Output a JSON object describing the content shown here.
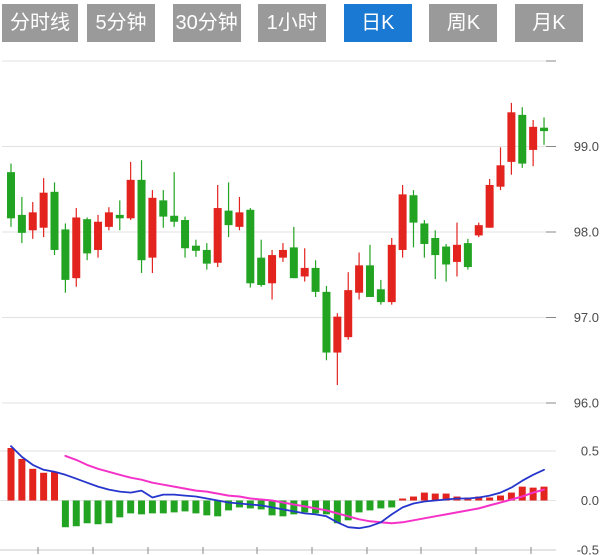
{
  "tabbar": {
    "tabs": [
      {
        "label": "分时线"
      },
      {
        "label": "5分钟"
      },
      {
        "label": "30分钟"
      },
      {
        "label": "1小时"
      },
      {
        "label": "日K"
      },
      {
        "label": "周K"
      },
      {
        "label": "月K"
      }
    ],
    "active_index": 4,
    "active_color": "#1a79d2",
    "inactive_color": "#9a9a9a"
  },
  "chart_data": {
    "type": "candlestick",
    "title": "",
    "panes": [
      "price",
      "macd"
    ],
    "price_axis": {
      "side": "right",
      "lines": [
        {
          "value": 100.0,
          "text": ""
        },
        {
          "value": 99.0,
          "text": "99.0"
        },
        {
          "value": 98.0,
          "text": "98.0"
        },
        {
          "value": 97.0,
          "text": "97.0"
        },
        {
          "value": 96.0,
          "text": "96.0"
        }
      ],
      "ylim": [
        95.8,
        100.1
      ]
    },
    "macd_axis": {
      "side": "right",
      "lines": [
        {
          "value": 0.5,
          "text": "0.5"
        },
        {
          "value": 0.0,
          "text": "0.0"
        },
        {
          "value": -0.5,
          "text": "-0.5"
        }
      ],
      "ylim": [
        -0.5,
        0.5
      ]
    },
    "candles_ohlc": [
      [
        98.7,
        98.8,
        98.06,
        98.16
      ],
      [
        98.2,
        98.41,
        97.87,
        97.99
      ],
      [
        98.02,
        98.35,
        97.92,
        98.23
      ],
      [
        98.05,
        98.63,
        97.94,
        98.46
      ],
      [
        98.47,
        98.58,
        97.73,
        97.79
      ],
      [
        98.03,
        98.1,
        97.29,
        97.44
      ],
      [
        97.46,
        98.28,
        97.36,
        98.17
      ],
      [
        98.15,
        98.17,
        97.67,
        97.75
      ],
      [
        97.79,
        98.2,
        97.7,
        98.12
      ],
      [
        98.06,
        98.29,
        98.02,
        98.23
      ],
      [
        98.2,
        98.37,
        98.02,
        98.16
      ],
      [
        98.16,
        98.82,
        98.14,
        98.61
      ],
      [
        98.61,
        98.84,
        97.52,
        97.67
      ],
      [
        97.7,
        98.49,
        97.52,
        98.4
      ],
      [
        98.37,
        98.49,
        98.05,
        98.18
      ],
      [
        98.19,
        98.7,
        98.06,
        98.12
      ],
      [
        98.14,
        98.18,
        97.7,
        97.81
      ],
      [
        97.84,
        97.91,
        97.71,
        97.78
      ],
      [
        97.79,
        97.87,
        97.56,
        97.63
      ],
      [
        97.64,
        98.55,
        97.59,
        98.28
      ],
      [
        98.25,
        98.58,
        97.94,
        98.08
      ],
      [
        98.06,
        98.41,
        98.02,
        98.23
      ],
      [
        98.26,
        98.28,
        97.35,
        97.4
      ],
      [
        97.7,
        97.91,
        97.36,
        97.38
      ],
      [
        97.4,
        97.79,
        97.21,
        97.73
      ],
      [
        97.7,
        97.87,
        97.65,
        97.79
      ],
      [
        97.82,
        98.06,
        97.46,
        97.46
      ],
      [
        97.48,
        97.81,
        97.42,
        97.58
      ],
      [
        97.58,
        97.67,
        97.24,
        97.3
      ],
      [
        97.3,
        97.37,
        96.5,
        96.59
      ],
      [
        96.59,
        97.05,
        96.21,
        97.01
      ],
      [
        96.77,
        97.53,
        96.74,
        97.32
      ],
      [
        97.29,
        97.76,
        97.21,
        97.61
      ],
      [
        97.61,
        97.85,
        97.24,
        97.24
      ],
      [
        97.33,
        97.44,
        97.15,
        97.18
      ],
      [
        97.18,
        97.93,
        97.15,
        97.85
      ],
      [
        97.79,
        98.55,
        97.7,
        98.44
      ],
      [
        98.43,
        98.49,
        97.82,
        98.11
      ],
      [
        98.1,
        98.14,
        97.7,
        97.86
      ],
      [
        97.93,
        98.02,
        97.45,
        97.73
      ],
      [
        97.83,
        97.86,
        97.42,
        97.62
      ],
      [
        97.65,
        98.11,
        97.48,
        97.85
      ],
      [
        97.87,
        97.92,
        97.56,
        97.59
      ],
      [
        97.96,
        98.11,
        97.94,
        98.08
      ],
      [
        98.05,
        98.62,
        98.05,
        98.55
      ],
      [
        98.53,
        98.99,
        98.49,
        98.78
      ],
      [
        98.82,
        99.51,
        98.67,
        99.4
      ],
      [
        99.37,
        99.46,
        98.75,
        98.8
      ],
      [
        98.96,
        99.31,
        98.77,
        99.23
      ],
      [
        99.22,
        99.34,
        99.02,
        99.18
      ]
    ],
    "macd": {
      "hist": [
        0.53,
        0.42,
        0.32,
        0.28,
        0.29,
        -0.27,
        -0.26,
        -0.23,
        -0.24,
        -0.23,
        -0.17,
        -0.13,
        -0.14,
        -0.13,
        -0.13,
        -0.12,
        -0.11,
        -0.13,
        -0.15,
        -0.16,
        -0.1,
        -0.07,
        -0.08,
        -0.09,
        -0.15,
        -0.16,
        -0.14,
        -0.12,
        -0.13,
        -0.14,
        -0.23,
        -0.2,
        -0.12,
        -0.1,
        -0.08,
        -0.07,
        0.02,
        0.04,
        0.08,
        0.07,
        0.07,
        0.04,
        0.03,
        0.04,
        0.03,
        0.05,
        0.08,
        0.14,
        0.13,
        0.14
      ],
      "dif": [
        0.55,
        0.44,
        0.36,
        0.31,
        0.29,
        0.26,
        0.22,
        0.18,
        0.14,
        0.11,
        0.09,
        0.08,
        0.1,
        0.03,
        0.06,
        0.06,
        0.05,
        0.04,
        0.02,
        0.0,
        -0.02,
        -0.03,
        -0.04,
        -0.05,
        -0.07,
        -0.09,
        -0.11,
        -0.13,
        -0.14,
        -0.16,
        -0.22,
        -0.27,
        -0.28,
        -0.26,
        -0.22,
        -0.14,
        -0.07,
        -0.03,
        -0.01,
        0.0,
        0.01,
        0.02,
        0.02,
        0.03,
        0.05,
        0.08,
        0.13,
        0.2,
        0.26,
        0.31
      ],
      "dea": [
        null,
        null,
        null,
        null,
        null,
        0.45,
        0.41,
        0.36,
        0.32,
        0.29,
        0.26,
        0.23,
        0.21,
        0.18,
        0.16,
        0.14,
        0.12,
        0.1,
        0.09,
        0.07,
        0.05,
        0.04,
        0.02,
        0.01,
        0.0,
        -0.02,
        -0.04,
        -0.06,
        -0.08,
        -0.1,
        -0.13,
        -0.16,
        -0.19,
        -0.21,
        -0.22,
        -0.23,
        -0.22,
        -0.2,
        -0.18,
        -0.16,
        -0.14,
        -0.12,
        -0.1,
        -0.08,
        -0.05,
        -0.02,
        0.01,
        0.04,
        0.08,
        0.11
      ]
    },
    "x_ticks": [
      38,
      93,
      148,
      203,
      257,
      312,
      367,
      421,
      476,
      531
    ],
    "colors": {
      "up": "#e2231e",
      "down": "#22a422",
      "dif_line": "#2636cc",
      "dea_line": "#f532c8",
      "grid": "#e2e2e2",
      "axis_line": "#c9c9c9",
      "tick": "#888888",
      "label": "#4a4a4a"
    },
    "legend": {
      "position": "none"
    },
    "grid": true
  }
}
